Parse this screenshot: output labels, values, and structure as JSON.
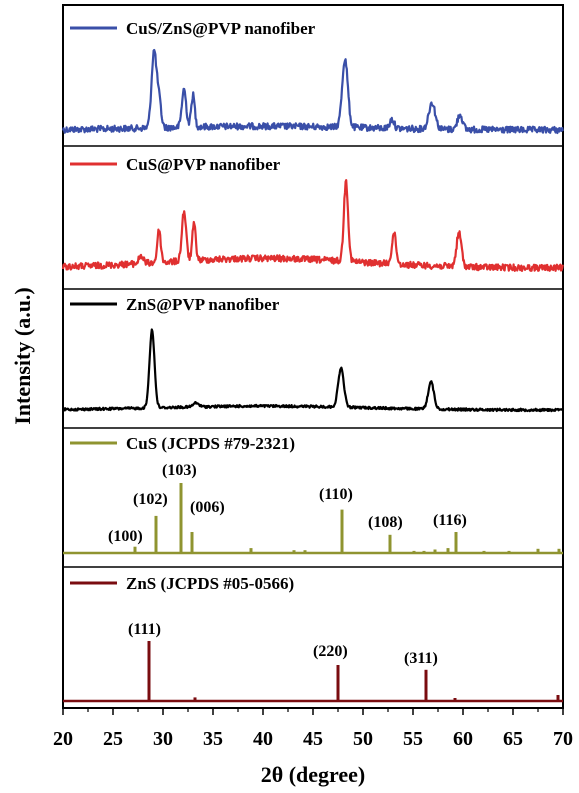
{
  "chart_data": {
    "type": "line",
    "title": "",
    "xlabel": "2θ (degree)",
    "ylabel": "Intensity (a.u.)",
    "xlim": [
      20,
      70
    ],
    "x_ticks": [
      "20",
      "25",
      "30",
      "35",
      "40",
      "45",
      "50",
      "55",
      "60",
      "65",
      "70"
    ],
    "grid": false,
    "panels": [
      {
        "name": "CuS/ZnS@PVP nanofiber",
        "color": "#3a4fa8",
        "kind": "pattern",
        "peaks": [
          [
            29.1,
            1.0,
            0.35
          ],
          [
            29.6,
            0.35,
            0.3
          ],
          [
            32.1,
            0.5,
            0.3
          ],
          [
            33.0,
            0.42,
            0.25
          ],
          [
            48.2,
            0.9,
            0.4
          ],
          [
            52.9,
            0.12,
            0.3
          ],
          [
            56.9,
            0.35,
            0.45
          ],
          [
            59.7,
            0.2,
            0.35
          ]
        ]
      },
      {
        "name": "CuS@PVP nanofiber",
        "color": "#e03030",
        "kind": "pattern",
        "peaks": [
          [
            27.8,
            0.1,
            0.3
          ],
          [
            29.6,
            0.4,
            0.25
          ],
          [
            32.1,
            0.62,
            0.3
          ],
          [
            33.1,
            0.45,
            0.25
          ],
          [
            48.3,
            1.0,
            0.3
          ],
          [
            53.1,
            0.38,
            0.3
          ],
          [
            59.6,
            0.42,
            0.35
          ]
        ]
      },
      {
        "name": "ZnS@PVP nanofiber",
        "color": "#000000",
        "kind": "pattern",
        "peaks": [
          [
            28.9,
            1.0,
            0.35
          ],
          [
            33.3,
            0.05,
            0.4
          ],
          [
            47.8,
            0.5,
            0.4
          ],
          [
            56.8,
            0.35,
            0.4
          ]
        ]
      },
      {
        "name": "CuS (JCPDS #79-2321)",
        "color": "#8f9430",
        "kind": "reference",
        "lines": [
          [
            27.2,
            0.09
          ],
          [
            29.3,
            0.53
          ],
          [
            31.8,
            1.0
          ],
          [
            32.9,
            0.3
          ],
          [
            38.8,
            0.07
          ],
          [
            43.1,
            0.04
          ],
          [
            44.2,
            0.04
          ],
          [
            47.9,
            0.62
          ],
          [
            52.7,
            0.26
          ],
          [
            55.1,
            0.03
          ],
          [
            56.1,
            0.03
          ],
          [
            57.2,
            0.05
          ],
          [
            58.5,
            0.07
          ],
          [
            59.3,
            0.3
          ],
          [
            62.1,
            0.03
          ],
          [
            64.6,
            0.03
          ],
          [
            67.5,
            0.06
          ],
          [
            69.6,
            0.06
          ]
        ],
        "labels": [
          "(100)",
          "(102)",
          "(103)",
          "(006)",
          "(110)",
          "(108)",
          "(116)"
        ]
      },
      {
        "name": "ZnS (JCPDS #05-0566)",
        "color": "#7a0c10",
        "kind": "reference",
        "lines": [
          [
            28.6,
            1.0
          ],
          [
            33.2,
            0.06
          ],
          [
            47.5,
            0.6
          ],
          [
            56.3,
            0.52
          ],
          [
            59.2,
            0.05
          ],
          [
            69.5,
            0.1
          ]
        ],
        "labels": [
          "(111)",
          "(220)",
          "(311)"
        ]
      }
    ]
  }
}
